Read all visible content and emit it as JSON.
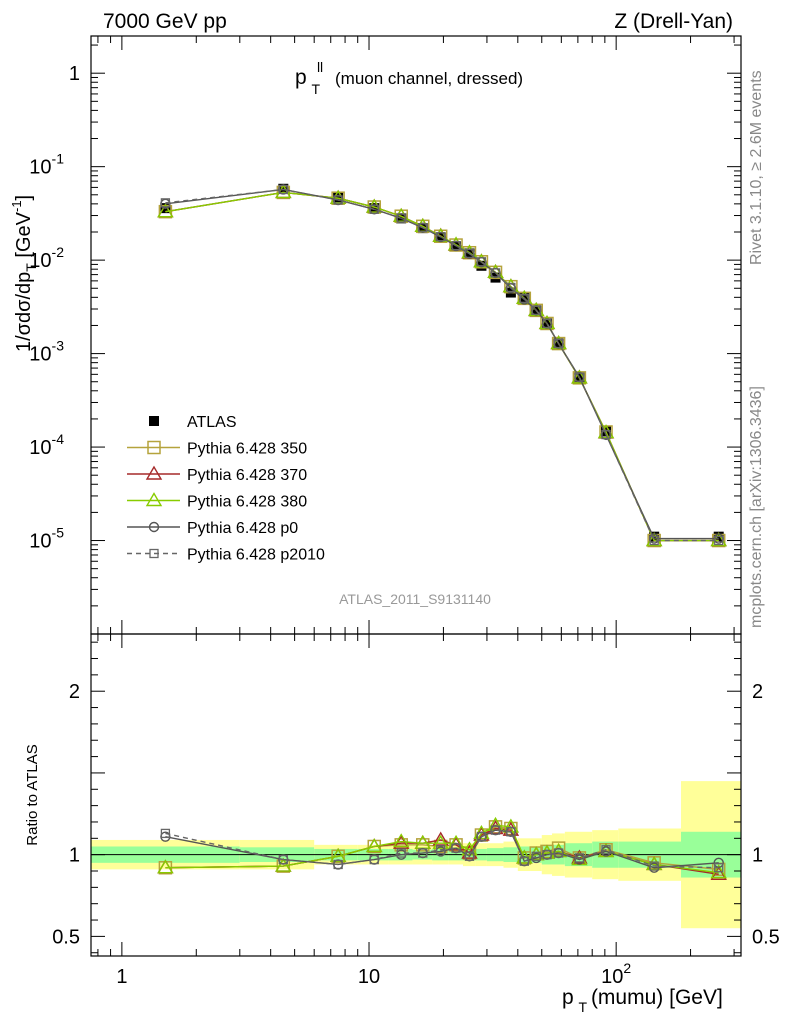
{
  "header": {
    "left": "7000 GeV pp",
    "right": "Z (Drell-Yan)"
  },
  "side_labels": {
    "rivet": "Rivet 3.1.10, ≥ 2.6M events",
    "mcplots": "mcplots.cern.ch [arXiv:1306.3436]"
  },
  "watermark": "ATLAS_2011_S9131140",
  "colors": {
    "atlas": "#000000",
    "p350": "#b5a33c",
    "p370": "#a52a2a",
    "p380": "#88cc00",
    "p0": "#555555",
    "p2010": "#666666",
    "band_inner": "#99ff99",
    "band_outer": "#ffff99"
  },
  "chart_data": [
    {
      "type": "scatter",
      "panel": "main",
      "title": "p_T^{ll} (muon channel, dressed)",
      "title_parts": {
        "p": "p",
        "sup": "ll",
        "sub": "T",
        "rest": "(muon channel, dressed)"
      },
      "ylabel": "1/σdσ/dp_T [GeV^-1]",
      "y_scale": "log",
      "ylim": [
        1e-06,
        2.5
      ],
      "xlim": [
        0.75,
        320
      ],
      "x_scale": "log",
      "y_ticks": [
        {
          "v": 1e-05,
          "label": "10",
          "exp": "-5"
        },
        {
          "v": 0.0001,
          "label": "10",
          "exp": "-4"
        },
        {
          "v": 0.001,
          "label": "10",
          "exp": "-3"
        },
        {
          "v": 0.01,
          "label": "10",
          "exp": "-2"
        },
        {
          "v": 0.1,
          "label": "10",
          "exp": "-1"
        },
        {
          "v": 1.0,
          "label": "1",
          "exp": ""
        }
      ],
      "x": [
        1.5,
        4.5,
        7.5,
        10.5,
        13.5,
        16.5,
        19.5,
        22.5,
        25.5,
        28.5,
        32.5,
        37.5,
        42.5,
        47.5,
        52.5,
        58.5,
        71,
        91,
        142.5,
        260
      ],
      "series": [
        {
          "name": "ATLAS",
          "key": "atlas",
          "marker": "filled-square",
          "line": "none",
          "values": [
            0.036,
            0.058,
            0.047,
            0.036,
            0.028,
            0.022,
            0.0175,
            0.014,
            0.0118,
            0.0087,
            0.0065,
            0.0045,
            0.004,
            0.0029,
            0.0021,
            0.00128,
            0.00056,
            0.000147,
            1.1e-05,
            1.1e-05
          ]
        },
        {
          "name": "Pythia 6.428 350",
          "key": "p350",
          "marker": "open-square",
          "line": "solid",
          "values": [
            0.033,
            0.053,
            0.046,
            0.037,
            0.0295,
            0.023,
            0.018,
            0.0145,
            0.012,
            0.0096,
            0.0074,
            0.0052,
            0.0039,
            0.0029,
            0.0021,
            0.00128,
            0.00055,
            0.000145,
            1e-05,
            1e-05
          ]
        },
        {
          "name": "Pythia 6.428 370",
          "key": "p370",
          "marker": "open-triangle",
          "line": "solid",
          "values": [
            0.033,
            0.053,
            0.046,
            0.037,
            0.0295,
            0.023,
            0.0181,
            0.0145,
            0.0119,
            0.0096,
            0.0074,
            0.0052,
            0.0039,
            0.0029,
            0.0021,
            0.00128,
            0.00055,
            0.000142,
            1e-05,
            1e-05
          ]
        },
        {
          "name": "Pythia 6.428 380",
          "key": "p380",
          "marker": "open-triangle",
          "line": "solid",
          "values": [
            0.033,
            0.053,
            0.046,
            0.037,
            0.0295,
            0.023,
            0.018,
            0.0146,
            0.012,
            0.0096,
            0.0074,
            0.0052,
            0.0039,
            0.0029,
            0.0021,
            0.00128,
            0.00055,
            0.000143,
            1e-05,
            1e-05
          ]
        },
        {
          "name": "Pythia 6.428 p0",
          "key": "p0",
          "marker": "open-circle",
          "line": "solid",
          "values": [
            0.04,
            0.057,
            0.044,
            0.035,
            0.028,
            0.0222,
            0.0177,
            0.0142,
            0.0117,
            0.0095,
            0.0073,
            0.005,
            0.0038,
            0.0029,
            0.0021,
            0.00128,
            0.00056,
            0.000135,
            1.05e-05,
            1.05e-05
          ]
        },
        {
          "name": "Pythia 6.428 p2010",
          "key": "p2010",
          "marker": "open-square-small",
          "line": "dashed",
          "values": [
            0.041,
            0.057,
            0.044,
            0.035,
            0.0282,
            0.0222,
            0.0178,
            0.0143,
            0.0118,
            0.0096,
            0.0073,
            0.0051,
            0.0039,
            0.0029,
            0.0021,
            0.00128,
            0.00056,
            0.000136,
            1e-05,
            1e-05
          ]
        }
      ],
      "legend": "left-middle"
    },
    {
      "type": "line",
      "panel": "ratio",
      "ylabel": "Ratio to ATLAS",
      "xlabel_parts": {
        "p": "p",
        "sub": "T",
        "rest": "(mumu) [GeV]"
      },
      "ylim": [
        0.38,
        2.35
      ],
      "y_ticks": [
        0.5,
        1,
        2
      ],
      "x_ticks": [
        {
          "v": 1,
          "label": "1",
          "exp": ""
        },
        {
          "v": 10,
          "label": "10",
          "exp": ""
        },
        {
          "v": 100,
          "label": "10",
          "exp": "2"
        }
      ],
      "bins": [
        [
          0.75,
          3
        ],
        [
          3,
          6
        ],
        [
          6,
          9
        ],
        [
          9,
          12
        ],
        [
          12,
          15
        ],
        [
          15,
          18
        ],
        [
          18,
          21
        ],
        [
          21,
          24
        ],
        [
          24,
          27
        ],
        [
          27,
          30
        ],
        [
          30,
          35
        ],
        [
          35,
          40
        ],
        [
          40,
          45
        ],
        [
          45,
          50
        ],
        [
          50,
          55
        ],
        [
          55,
          62
        ],
        [
          62,
          80
        ],
        [
          80,
          102
        ],
        [
          102,
          183
        ],
        [
          183,
          320
        ]
      ],
      "band_inner": [
        0.05,
        0.045,
        0.035,
        0.035,
        0.035,
        0.03,
        0.035,
        0.035,
        0.035,
        0.035,
        0.04,
        0.045,
        0.05,
        0.05,
        0.06,
        0.06,
        0.07,
        0.08,
        0.08,
        0.14
      ],
      "band_outer": [
        0.09,
        0.09,
        0.06,
        0.06,
        0.06,
        0.06,
        0.06,
        0.06,
        0.07,
        0.07,
        0.07,
        0.08,
        0.1,
        0.1,
        0.12,
        0.13,
        0.14,
        0.15,
        0.16,
        0.45
      ],
      "x": [
        1.5,
        4.5,
        7.5,
        10.5,
        13.5,
        16.5,
        19.5,
        22.5,
        25.5,
        28.5,
        32.5,
        37.5,
        42.5,
        47.5,
        52.5,
        58.5,
        71,
        91,
        142.5,
        260
      ],
      "series": [
        {
          "name": "Pythia 6.428 350",
          "key": "p350",
          "marker": "open-square",
          "line": "solid",
          "values": [
            0.92,
            0.93,
            0.99,
            1.05,
            1.06,
            1.06,
            1.05,
            1.06,
            1.01,
            1.12,
            1.17,
            1.16,
            0.98,
            1.01,
            1.02,
            1.04,
            0.98,
            1.03,
            0.95,
            0.91
          ]
        },
        {
          "name": "Pythia 6.428 370",
          "key": "p370",
          "marker": "open-triangle",
          "line": "solid",
          "values": [
            0.92,
            0.93,
            0.99,
            1.05,
            1.07,
            1.07,
            1.09,
            1.06,
            1.01,
            1.12,
            1.16,
            1.15,
            0.98,
            1.0,
            1.01,
            1.02,
            0.98,
            1.02,
            0.94,
            0.88
          ]
        },
        {
          "name": "Pythia 6.428 380",
          "key": "p380",
          "marker": "open-triangle",
          "line": "solid",
          "values": [
            0.92,
            0.93,
            0.99,
            1.05,
            1.08,
            1.07,
            1.07,
            1.07,
            1.03,
            1.13,
            1.18,
            1.17,
            0.98,
            1.0,
            1.01,
            1.02,
            0.97,
            1.02,
            0.94,
            0.89
          ]
        },
        {
          "name": "Pythia 6.428 p0",
          "key": "p0",
          "marker": "open-circle",
          "line": "solid",
          "values": [
            1.11,
            0.97,
            0.94,
            0.97,
            1.0,
            1.01,
            1.02,
            1.04,
            0.99,
            1.11,
            1.15,
            1.14,
            0.96,
            0.98,
            1.0,
            1.01,
            0.97,
            1.02,
            0.92,
            0.95
          ]
        },
        {
          "name": "Pythia 6.428 p2010",
          "key": "p2010",
          "marker": "open-square-small",
          "line": "dashed",
          "values": [
            1.13,
            0.97,
            0.94,
            0.97,
            1.01,
            1.01,
            1.03,
            1.04,
            0.99,
            1.11,
            1.15,
            1.14,
            0.96,
            0.99,
            1.0,
            1.01,
            0.98,
            1.03,
            0.93,
            0.92
          ]
        }
      ]
    }
  ]
}
